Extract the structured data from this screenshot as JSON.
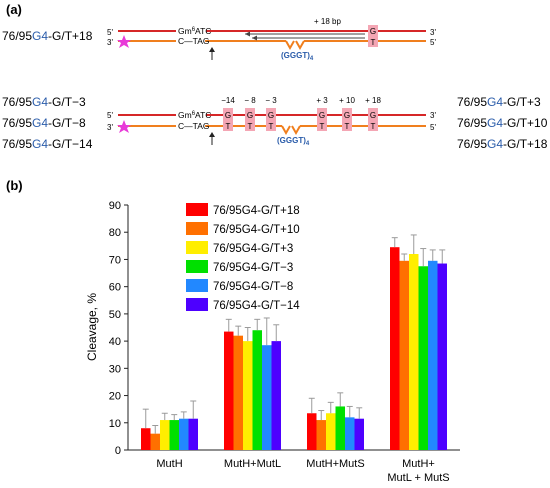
{
  "panel_a": {
    "label": "(a)",
    "top": {
      "name_pre": "76/95",
      "name_g4": "G4",
      "name_post": "-G/T+18",
      "strand_5": "5'",
      "strand_3": "3'",
      "top_seq_pre": "Gm",
      "top_seq_sup": "6",
      "top_seq_post": "ATC",
      "bottom_seq": "C—TAG",
      "distance_label": "+ 18 bp",
      "mismatch_top": "G",
      "mismatch_bottom": "T",
      "quad_label": "(GGGT)",
      "quad_sub": "4"
    },
    "bottom": {
      "names_left": [
        {
          "pre": "76/95",
          "g4": "G4",
          "post": "-G/T−3"
        },
        {
          "pre": "76/95",
          "g4": "G4",
          "post": "-G/T−8"
        },
        {
          "pre": "76/95",
          "g4": "G4",
          "post": "-G/T−14"
        }
      ],
      "names_right": [
        {
          "pre": "76/95",
          "g4": "G4",
          "post": "-G/T+3"
        },
        {
          "pre": "76/95",
          "g4": "G4",
          "post": "-G/T+10"
        },
        {
          "pre": "76/95",
          "g4": "G4",
          "post": "-G/T+18"
        }
      ],
      "positions": [
        "−14",
        "− 8",
        "− 3",
        "+ 3",
        "+ 10",
        "+ 18"
      ],
      "strand_5": "5'",
      "strand_3": "3'",
      "top_seq_pre": "Gm",
      "top_seq_sup": "6",
      "top_seq_post": "ATC",
      "bottom_seq": "C—TAG",
      "mismatch_top": "G",
      "mismatch_bottom": "T",
      "quad_label": "(GGGT)",
      "quad_sub": "4"
    }
  },
  "panel_b": {
    "label": "(b)"
  },
  "colors": {
    "red_strand": "#d62728",
    "orange_strand": "#f07f1e",
    "mismatch_box": "#f4a6b4",
    "g4_blue": "#2a5caa",
    "marker": "#e83ad8",
    "error_bar": "#9a9a9a"
  },
  "chart_data": {
    "type": "bar",
    "categories": [
      "MutH",
      "MutH+MutL",
      "MutH+MutS",
      "MutH+\nMutL + MutS"
    ],
    "ylabel": "Cleavage, %",
    "xlabel": "",
    "ylim": [
      0,
      90
    ],
    "yticks": [
      0,
      10,
      20,
      30,
      40,
      50,
      60,
      70,
      80,
      90
    ],
    "grid": false,
    "legend_position": "top-left",
    "series": [
      {
        "name": "76/95G4-G/T+18",
        "color": "#ff0000",
        "values": [
          8,
          43.5,
          13.5,
          74.5
        ],
        "errors": [
          7,
          4.5,
          5.5,
          3.5
        ]
      },
      {
        "name": "76/95G4-G/T+10",
        "color": "#ff7000",
        "values": [
          6,
          42,
          11,
          69.5
        ],
        "errors": [
          3,
          3.5,
          3.5,
          2.5
        ]
      },
      {
        "name": "76/95G4-G/T+3",
        "color": "#ffee00",
        "values": [
          11,
          40,
          13.5,
          72
        ],
        "errors": [
          2.5,
          5,
          4,
          7
        ]
      },
      {
        "name": "76/95G4-G/T−3",
        "color": "#00e000",
        "values": [
          11,
          44,
          16,
          67.5
        ],
        "errors": [
          2,
          4,
          5,
          6.5
        ]
      },
      {
        "name": "76/95G4-G/T−8",
        "color": "#2288ff",
        "values": [
          11.5,
          38.5,
          12,
          69.5
        ],
        "errors": [
          2.5,
          10,
          4,
          4
        ]
      },
      {
        "name": "76/95G4-G/T−14",
        "color": "#4d00ff",
        "values": [
          11.5,
          40,
          11.5,
          68.5
        ],
        "errors": [
          6.5,
          6,
          4,
          5
        ]
      }
    ]
  }
}
